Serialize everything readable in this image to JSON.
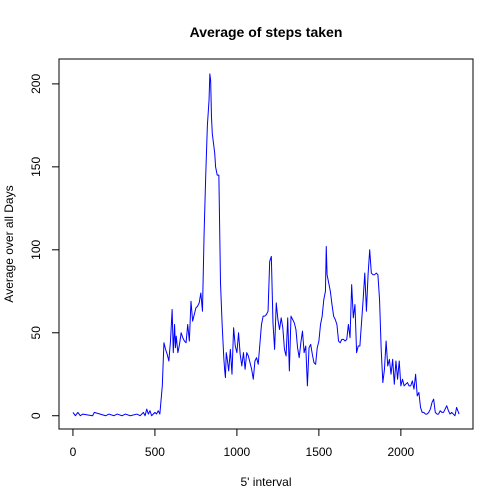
{
  "chart_data": {
    "type": "line",
    "title": "Average of steps taken",
    "xlabel": "5' interval",
    "ylabel": "Average over all Days",
    "xlim": [
      -85,
      2440
    ],
    "ylim": [
      -8,
      215
    ],
    "x_ticks": [
      0,
      500,
      1000,
      1500,
      2000
    ],
    "y_ticks": [
      0,
      50,
      100,
      150,
      200
    ],
    "line_color": "#0000ff",
    "grid": false,
    "legend": "none",
    "series": [
      {
        "x": [
          0,
          15,
          30,
          45,
          60,
          120,
          130,
          200,
          220,
          250,
          270,
          300,
          320,
          350,
          390,
          410,
          430,
          440,
          450,
          460,
          470,
          480,
          500,
          510,
          520,
          530,
          545,
          555,
          565,
          575,
          585,
          595,
          605,
          612,
          620,
          625,
          630,
          640,
          650,
          660,
          670,
          680,
          690,
          700,
          710,
          720,
          730,
          740,
          750,
          760,
          770,
          780,
          790,
          800,
          810,
          820,
          830,
          835,
          840,
          845,
          850,
          855,
          860,
          865,
          870,
          880,
          890,
          900,
          910,
          920,
          925,
          930,
          935,
          940,
          950,
          960,
          970,
          980,
          990,
          1000,
          1010,
          1020,
          1030,
          1040,
          1050,
          1060,
          1070,
          1080,
          1090,
          1100,
          1110,
          1120,
          1130,
          1140,
          1150,
          1160,
          1170,
          1180,
          1190,
          1200,
          1210,
          1220,
          1230,
          1240,
          1250,
          1260,
          1270,
          1280,
          1290,
          1300,
          1310,
          1320,
          1330,
          1340,
          1350,
          1360,
          1370,
          1380,
          1390,
          1400,
          1410,
          1420,
          1430,
          1440,
          1450,
          1460,
          1470,
          1480,
          1490,
          1500,
          1510,
          1520,
          1530,
          1540,
          1545,
          1550,
          1560,
          1570,
          1580,
          1590,
          1600,
          1610,
          1620,
          1630,
          1640,
          1650,
          1660,
          1670,
          1680,
          1690,
          1700,
          1710,
          1720,
          1730,
          1740,
          1750,
          1760,
          1770,
          1780,
          1790,
          1800,
          1810,
          1820,
          1830,
          1840,
          1850,
          1860,
          1870,
          1880,
          1890,
          1900,
          1910,
          1920,
          1930,
          1940,
          1950,
          1960,
          1970,
          1980,
          1990,
          2000,
          2010,
          2020,
          2030,
          2040,
          2050,
          2060,
          2070,
          2080,
          2090,
          2100,
          2110,
          2120,
          2130,
          2140,
          2150,
          2160,
          2170,
          2180,
          2190,
          2200,
          2210,
          2220,
          2230,
          2240,
          2250,
          2260,
          2270,
          2280,
          2290,
          2300,
          2310,
          2320,
          2330,
          2340,
          2355
        ],
        "y": [
          2,
          0,
          2,
          0,
          1,
          0,
          2,
          0,
          1,
          0,
          1,
          0,
          1,
          0,
          1,
          0,
          2,
          0,
          4,
          1,
          3,
          0,
          2,
          1,
          3,
          1,
          18,
          44,
          40,
          37,
          33,
          45,
          64,
          38,
          55,
          41,
          48,
          38,
          43,
          50,
          47,
          45,
          44,
          55,
          45,
          69,
          57,
          61,
          65,
          66,
          68,
          74,
          63,
          110,
          145,
          175,
          190,
          206,
          202,
          180,
          170,
          166,
          162,
          158,
          150,
          145,
          145,
          80,
          55,
          35,
          28,
          23,
          38,
          35,
          27,
          40,
          25,
          53,
          42,
          38,
          50,
          37,
          30,
          38,
          28,
          38,
          36,
          32,
          28,
          22,
          33,
          35,
          31,
          43,
          55,
          60,
          60,
          61,
          63,
          93,
          96,
          56,
          40,
          68,
          58,
          52,
          59,
          53,
          40,
          36,
          59,
          27,
          60,
          58,
          56,
          52,
          41,
          35,
          44,
          51,
          38,
          42,
          18,
          41,
          43,
          37,
          32,
          31,
          41,
          45,
          55,
          60,
          70,
          75,
          102,
          85,
          80,
          75,
          67,
          60,
          58,
          55,
          45,
          44,
          46,
          46,
          45,
          46,
          55,
          47,
          79,
          59,
          67,
          38,
          42,
          42,
          56,
          70,
          86,
          63,
          85,
          100,
          86,
          85,
          85,
          86,
          85,
          70,
          40,
          20,
          28,
          45,
          30,
          34,
          25,
          34,
          19,
          33,
          22,
          33,
          18,
          22,
          18,
          19,
          20,
          18,
          18,
          21,
          16,
          25,
          12,
          14,
          5,
          2,
          2,
          1,
          1,
          2,
          4,
          8,
          10,
          2,
          1,
          1,
          3,
          2,
          2,
          4,
          6,
          3,
          1,
          2,
          1,
          0,
          5,
          1
        ]
      }
    ]
  }
}
